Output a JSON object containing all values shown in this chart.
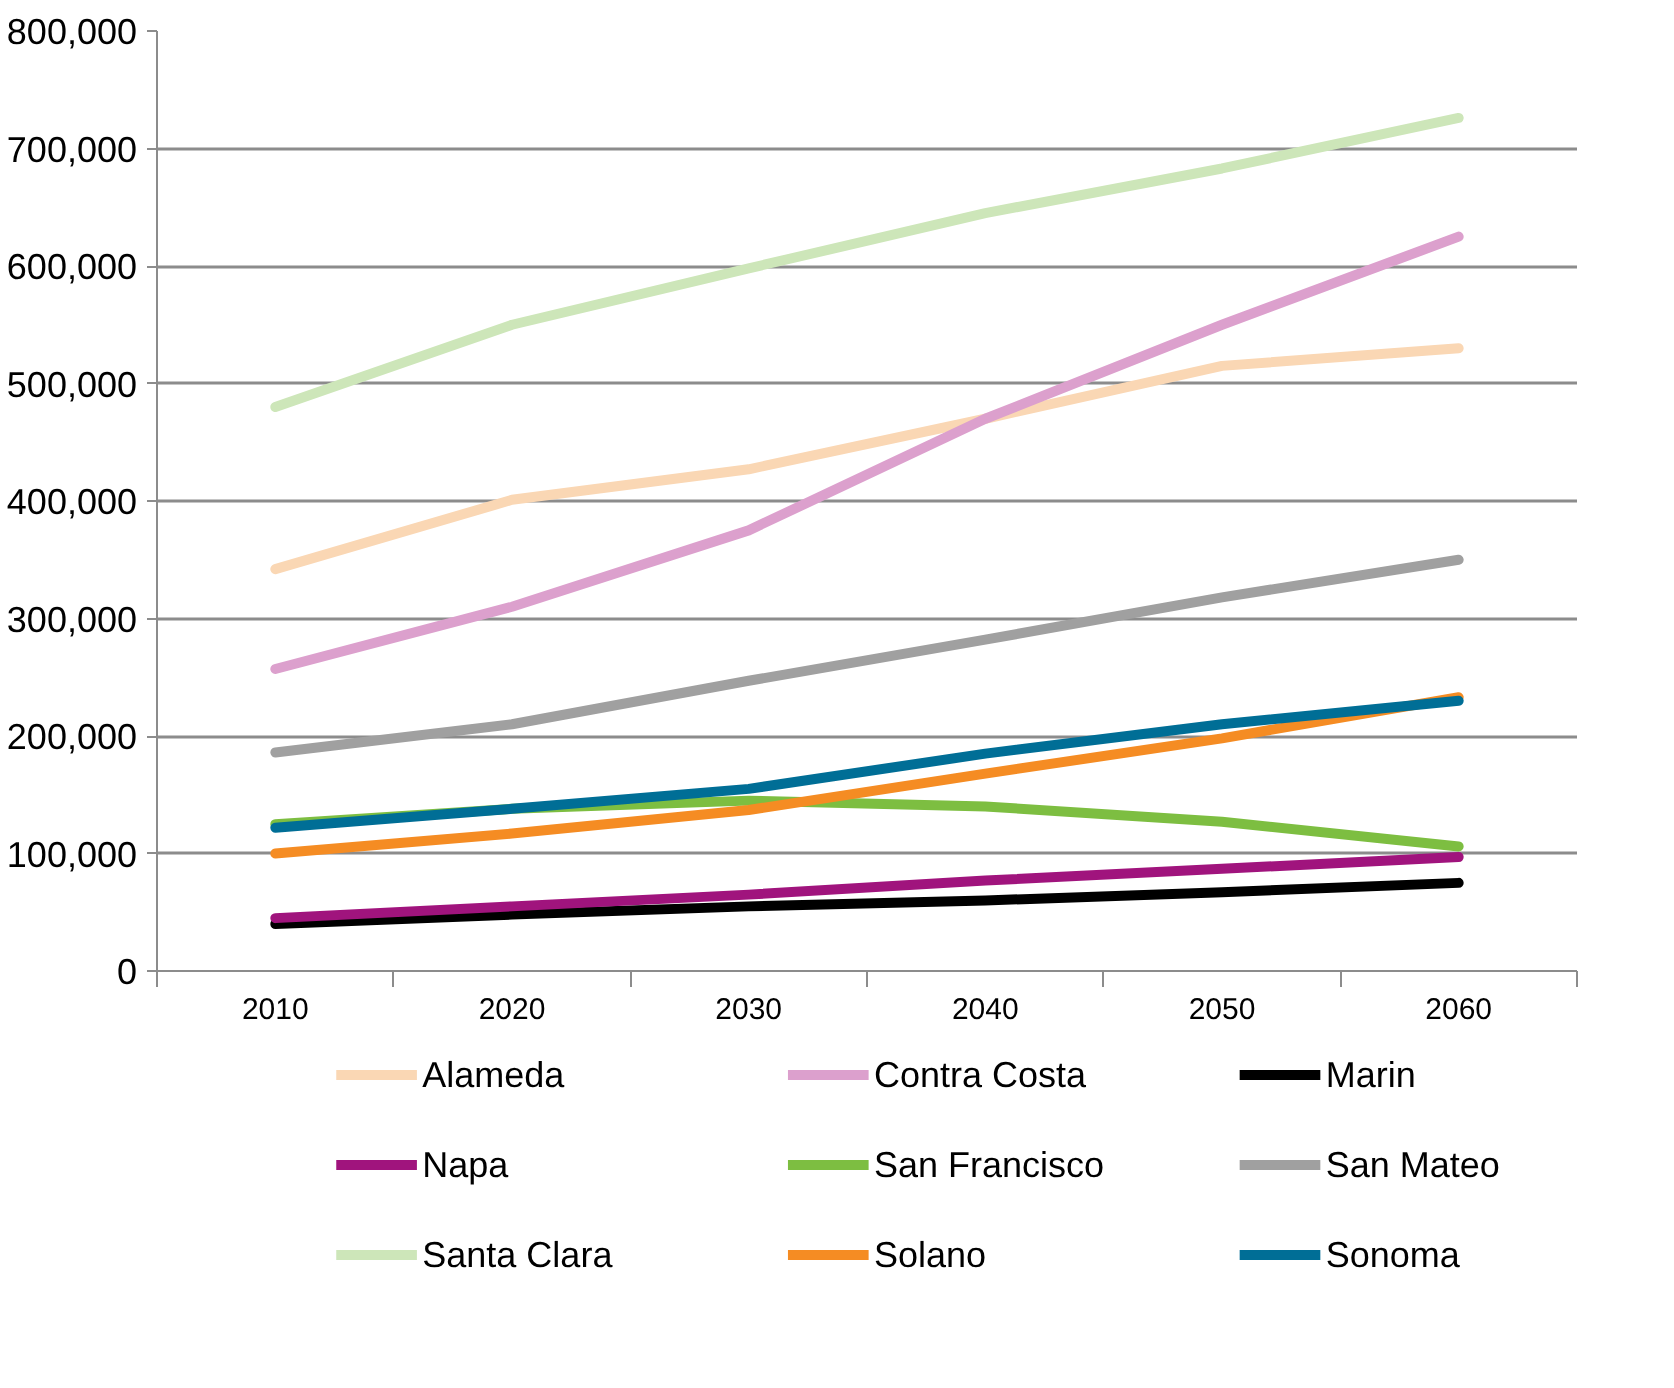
{
  "chart_data": {
    "type": "line",
    "categories": [
      "2010",
      "2020",
      "2030",
      "2040",
      "2050",
      "2060"
    ],
    "ylim": [
      0,
      800000
    ],
    "yticks": [
      {
        "value": 0,
        "label": "0"
      },
      {
        "value": 100000,
        "label": "100,000"
      },
      {
        "value": 200000,
        "label": "200,000"
      },
      {
        "value": 300000,
        "label": "300,000"
      },
      {
        "value": 400000,
        "label": "400,000"
      },
      {
        "value": 500000,
        "label": "500,000"
      },
      {
        "value": 600000,
        "label": "600,000"
      },
      {
        "value": 700000,
        "label": "700,000"
      },
      {
        "value": 800000,
        "label": "800,000"
      }
    ],
    "grid": "y",
    "legend": "bottom",
    "marker": "none",
    "line_style": "solid",
    "series": [
      {
        "name": "Alameda",
        "color": "#fad7b4",
        "values": [
          342000,
          401000,
          427000,
          470000,
          515000,
          530000
        ]
      },
      {
        "name": "Contra Costa",
        "color": "#dca0cd",
        "values": [
          257000,
          310000,
          375000,
          470000,
          550000,
          625000
        ]
      },
      {
        "name": "Marin",
        "color": "#000000",
        "values": [
          40000,
          48000,
          55000,
          60000,
          67000,
          75000
        ]
      },
      {
        "name": "Napa",
        "color": "#a0147d",
        "values": [
          45000,
          55000,
          65000,
          77000,
          87000,
          97000
        ]
      },
      {
        "name": "San Francisco",
        "color": "#7dbe41",
        "values": [
          125000,
          138000,
          145000,
          140000,
          127000,
          106000
        ]
      },
      {
        "name": "San Mateo",
        "color": "#a0a0a0",
        "values": [
          186000,
          210000,
          247000,
          282000,
          318000,
          350000
        ]
      },
      {
        "name": "Santa Clara",
        "color": "#cde6b9",
        "values": [
          480000,
          550000,
          598000,
          645000,
          683000,
          726000
        ]
      },
      {
        "name": "Solano",
        "color": "#f58c23",
        "values": [
          100000,
          117000,
          137000,
          168000,
          198000,
          233000
        ]
      },
      {
        "name": "Sonoma",
        "color": "#006e96",
        "values": [
          122000,
          138000,
          155000,
          185000,
          210000,
          230000
        ]
      }
    ]
  }
}
